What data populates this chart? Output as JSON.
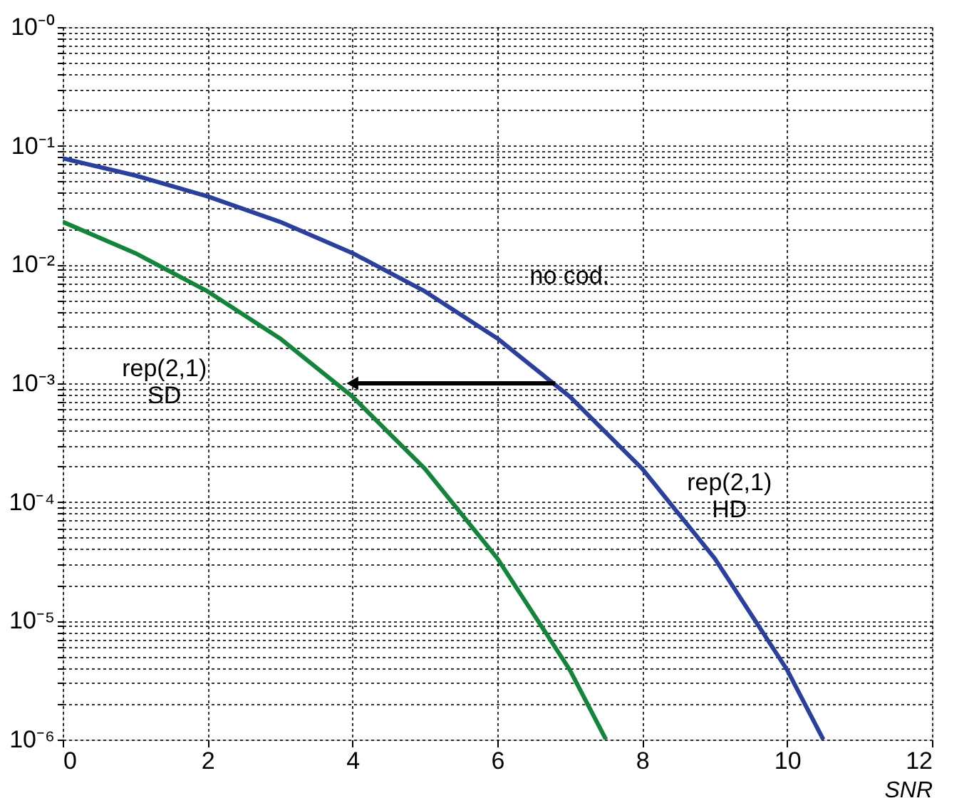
{
  "chart_data": {
    "type": "line",
    "xlabel": "SNR",
    "series": [
      {
        "color": "#2b3f9c",
        "x": [
          0,
          1,
          2,
          3,
          4,
          5,
          6,
          7,
          8,
          9,
          10,
          10.5
        ],
        "values": [
          0.0786,
          0.0563,
          0.0375,
          0.0229,
          0.0125,
          0.00595,
          0.00239,
          0.000773,
          0.000191,
          3.36e-05,
          3.87e-06,
          1e-06
        ]
      },
      {
        "color": "#13853b",
        "x": [
          0,
          1,
          2,
          3,
          4,
          5,
          6,
          7,
          7.5
        ],
        "values": [
          0.0229,
          0.0125,
          0.00595,
          0.00239,
          0.000773,
          0.000191,
          3.36e-05,
          3.87e-06,
          1e-06
        ]
      },
      {
        "color": "#000000",
        "x": [
          6.8,
          4
        ],
        "values": [
          0.001,
          0.001
        ],
        "marker": "triangle"
      }
    ],
    "log": true,
    "xlim": [
      0,
      12
    ],
    "xticks": [
      0,
      2,
      4,
      6,
      8,
      10,
      12
    ],
    "ylim": [
      1e-06,
      1
    ],
    "yticks": [
      {
        "value": 1e-06,
        "label": "10⁻⁶"
      },
      {
        "value": 2e-06,
        "label": null
      },
      {
        "value": 3e-06,
        "label": null
      },
      {
        "value": 4e-06,
        "label": null
      },
      {
        "value": 5e-06,
        "label": null
      },
      {
        "value": 6e-06,
        "label": null
      },
      {
        "value": 7e-06,
        "label": null
      },
      {
        "value": 8e-06,
        "label": null
      },
      {
        "value": 9e-06,
        "label": null
      },
      {
        "value": 1e-05,
        "label": "10⁻⁵"
      },
      {
        "value": 2e-05,
        "label": null
      },
      {
        "value": 3e-05,
        "label": null
      },
      {
        "value": 4e-05,
        "label": null
      },
      {
        "value": 5e-05,
        "label": null
      },
      {
        "value": 6e-05,
        "label": null
      },
      {
        "value": 7e-05,
        "label": null
      },
      {
        "value": 8e-05,
        "label": null
      },
      {
        "value": 9e-05,
        "label": null
      },
      {
        "value": 0.0001,
        "label": "10⁻⁴"
      },
      {
        "value": 0.0002,
        "label": null
      },
      {
        "value": 0.0003,
        "label": null
      },
      {
        "value": 0.0004,
        "label": null
      },
      {
        "value": 0.0005,
        "label": null
      },
      {
        "value": 0.0006,
        "label": null
      },
      {
        "value": 0.0007,
        "label": null
      },
      {
        "value": 0.0008,
        "label": null
      },
      {
        "value": 0.0009,
        "label": null
      },
      {
        "value": 0.001,
        "label": "10⁻³"
      },
      {
        "value": 0.002,
        "label": null
      },
      {
        "value": 0.003,
        "label": null
      },
      {
        "value": 0.004,
        "label": null
      },
      {
        "value": 0.005,
        "label": null
      },
      {
        "value": 0.006,
        "label": null
      },
      {
        "value": 0.007,
        "label": null
      },
      {
        "value": 0.008,
        "label": null
      },
      {
        "value": 0.009,
        "label": null
      },
      {
        "value": 0.01,
        "label": "10⁻²"
      },
      {
        "value": 0.02,
        "label": null
      },
      {
        "value": 0.03,
        "label": null
      },
      {
        "value": 0.04,
        "label": null
      },
      {
        "value": 0.05,
        "label": null
      },
      {
        "value": 0.06,
        "label": null
      },
      {
        "value": 0.07,
        "label": null
      },
      {
        "value": 0.08,
        "label": null
      },
      {
        "value": 0.09,
        "label": null
      },
      {
        "value": 0.1,
        "label": "10⁻¹"
      },
      {
        "value": 0.2,
        "label": null
      },
      {
        "value": 0.3,
        "label": null
      },
      {
        "value": 0.4,
        "label": null
      },
      {
        "value": 0.5,
        "label": null
      },
      {
        "value": 0.6,
        "label": null
      },
      {
        "value": 0.7,
        "label": null
      },
      {
        "value": 0.8,
        "label": null
      },
      {
        "value": 0.9,
        "label": null
      },
      {
        "value": 1,
        "label": "10⁻⁰"
      }
    ],
    "grid": true,
    "annotations": [
      "no cod.",
      "rep(2,1)\nHD",
      "rep(2,1)\nSD"
    ]
  }
}
